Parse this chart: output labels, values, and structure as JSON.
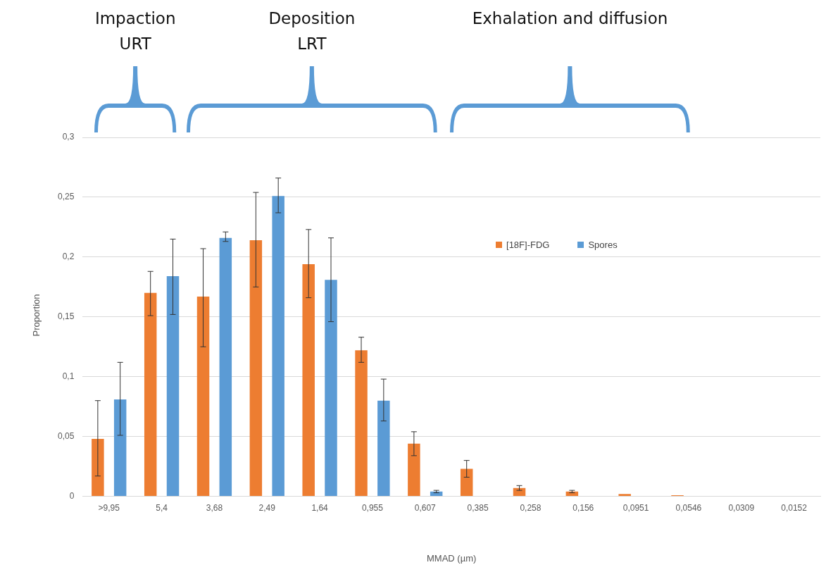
{
  "chart_data": {
    "type": "bar",
    "xlabel": "MMAD (µm)",
    "ylabel": "Proportion",
    "annotations": [
      "Impaction\nURT",
      "Deposition\nLRT",
      "Exhalation and diffusion"
    ],
    "categories": [
      ">9,95",
      "5,4",
      "3,68",
      "2,49",
      "1,64",
      "0,955",
      "0,607",
      "0,385",
      "0,258",
      "0,156",
      "0,0951",
      "0,0546",
      "0,0309",
      "0,0152"
    ],
    "series": [
      {
        "name": "[18F]-FDG",
        "color": "#ed7d31",
        "values": [
          0.048,
          0.17,
          0.167,
          0.214,
          0.194,
          0.122,
          0.044,
          0.023,
          0.007,
          0.004,
          0.002,
          0.001,
          0,
          0
        ],
        "errors": [
          [
            0.017,
            0.08
          ],
          [
            0.151,
            0.188
          ],
          [
            0.125,
            0.207
          ],
          [
            0.175,
            0.254
          ],
          [
            0.166,
            0.223
          ],
          [
            0.112,
            0.133
          ],
          [
            0.034,
            0.054
          ],
          [
            0.016,
            0.03
          ],
          [
            0.005,
            0.009
          ],
          [
            0.003,
            0.005
          ],
          null,
          null,
          null,
          null
        ]
      },
      {
        "name": "Spores",
        "color": "#5b9bd5",
        "values": [
          0.081,
          0.184,
          0.216,
          0.251,
          0.181,
          0.08,
          0.004,
          0,
          0,
          0,
          0,
          0,
          0,
          0
        ],
        "errors": [
          [
            0.051,
            0.112
          ],
          [
            0.152,
            0.215
          ],
          [
            0.213,
            0.221
          ],
          [
            0.237,
            0.266
          ],
          [
            0.146,
            0.216
          ],
          [
            0.063,
            0.098
          ],
          [
            0.003,
            0.005
          ],
          null,
          null,
          null,
          null,
          null,
          null,
          null
        ]
      }
    ],
    "ylim": [
      0,
      0.3
    ],
    "yticks": [
      0,
      {
        "value": 0.05,
        "label": "0,05"
      },
      {
        "value": 0.1,
        "label": "0,1"
      },
      {
        "value": 0.15,
        "label": "0,15"
      },
      {
        "value": 0.2,
        "label": "0,2"
      },
      {
        "value": 0.25,
        "label": "0,25"
      },
      {
        "value": 0.3,
        "label": "0,3"
      }
    ],
    "grid": "y",
    "legend": "top"
  }
}
